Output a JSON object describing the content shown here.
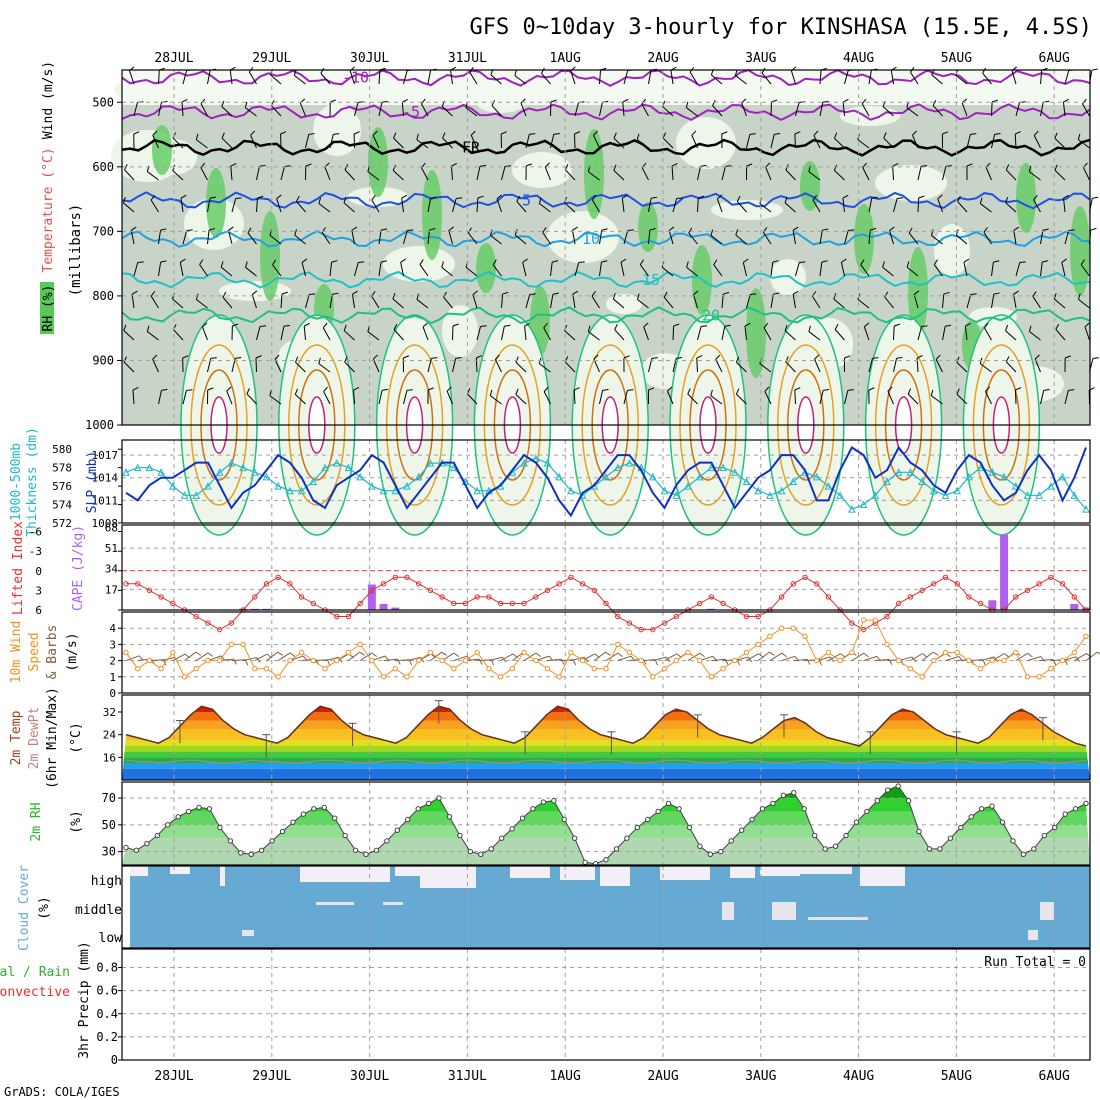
{
  "title": "GFS 0~10day 3-hourly for KINSHASA (15.5E, 4.5S)",
  "credit": "GrADS: COLA/IGES",
  "dates": [
    "28JUL",
    "29JUL",
    "30JUL",
    "31JUL",
    "1AUG",
    "2AUG",
    "3AUG",
    "4AUG",
    "5AUG",
    "6AUG"
  ],
  "colors": {
    "temp_label": "#e05050",
    "rh_label": "#30c030",
    "wind_label": "#000000",
    "cyan": "#20b8c8",
    "slp": "#1030c0",
    "lifted": "#e03030",
    "cape": "#b060f0",
    "wind_speed": "#f09020",
    "barb": "#806040",
    "dewpt": "#c08080",
    "rh2m": "#20c020",
    "cloud": "#66aad4",
    "frame": "#000000",
    "grid": "#a0a0a0"
  },
  "chart_data": [
    {
      "panel": "upper-air",
      "type": "heatmap",
      "ylabel": "(millibars)",
      "axis_labels": {
        "rh": "RH (%)",
        "temperature": "Temperature (°C)",
        "wind": "Wind (m/s)"
      },
      "y_ticks": [
        500,
        600,
        700,
        800,
        900,
        1000
      ],
      "ylim": [
        450,
        1000
      ],
      "isotherm_labels": [
        "-10",
        "-5",
        "FR",
        "5",
        "10",
        "15",
        "20"
      ],
      "rh_labels": [
        "10",
        "30",
        "50",
        "70"
      ],
      "isotherms": [
        {
          "name": "-10",
          "level": 462,
          "color": "#a020c0"
        },
        {
          "name": "-5",
          "level": 515,
          "color": "#a020c0"
        },
        {
          "name": "FR",
          "level": 570,
          "color": "#000000"
        },
        {
          "name": "5",
          "level": 652,
          "color": "#2050e0"
        },
        {
          "name": "10",
          "level": 712,
          "color": "#20a0e0"
        },
        {
          "name": "15",
          "level": 775,
          "color": "#20c0c8"
        },
        {
          "name": "20",
          "level": 830,
          "color": "#20c080"
        }
      ]
    },
    {
      "panel": "slp-thickness",
      "type": "line",
      "ylabel_left": "Thickness (dm)",
      "ylabel_left2": "1000-500mb",
      "ylabel_right": "SLP (mb)",
      "thickness_ticks": [
        "572",
        "574",
        "576",
        "578",
        "580"
      ],
      "slp_ticks": [
        "1008",
        "1011",
        "1014",
        "1017"
      ],
      "series": [
        {
          "name": "SLP (mb)",
          "values": [
            1012,
            1011,
            1013,
            1014,
            1014,
            1015,
            1016,
            1016,
            1013,
            1010,
            1012,
            1013,
            1015,
            1017,
            1016,
            1014,
            1011,
            1010,
            1013,
            1014,
            1015,
            1017,
            1016,
            1013,
            1010,
            1012,
            1014,
            1016,
            1016,
            1013,
            1010,
            1012,
            1013,
            1015,
            1017,
            1016,
            1014,
            1011,
            1009,
            1012,
            1013,
            1015,
            1017,
            1017,
            1015,
            1012,
            1010,
            1013,
            1015,
            1016,
            1016,
            1013,
            1010,
            1012,
            1014,
            1015,
            1017,
            1017,
            1015,
            1011,
            1011,
            1015,
            1018,
            1017,
            1014,
            1015,
            1018,
            1016,
            1015,
            1013,
            1012,
            1015,
            1017,
            1016,
            1013,
            1011,
            1012,
            1015,
            1017,
            1015,
            1011,
            1014,
            1018
          ]
        },
        {
          "name": "Thickness (dm)",
          "values": [
            577.5,
            578,
            578,
            577.5,
            576,
            575,
            575,
            576,
            577.5,
            578.5,
            578,
            577.5,
            577,
            576,
            575.5,
            575.5,
            576.5,
            578,
            578.5,
            578,
            577,
            576,
            575.5,
            575.5,
            576,
            577,
            578.5,
            578.5,
            578,
            576.5,
            575.5,
            575.5,
            576,
            577.5,
            578.5,
            579,
            578.5,
            577,
            575.5,
            575,
            576,
            577,
            578,
            578.5,
            578,
            577,
            575.5,
            575,
            576,
            577,
            578,
            578,
            577.5,
            576.5,
            575.5,
            575,
            575.5,
            576.5,
            577.5,
            577,
            576,
            575,
            573.5,
            574,
            575,
            576.5,
            577.5,
            577.5,
            576.5,
            575.5,
            575,
            575.5,
            577,
            578,
            577.5,
            577,
            576,
            575,
            575,
            576,
            577,
            575,
            573.5
          ]
        }
      ]
    },
    {
      "panel": "lifted-cape",
      "type": "bar",
      "ylabel_left": "Lifted Index",
      "ylabel_right": "CAPE (J/kg)",
      "li_ticks": [
        "-6",
        "-3",
        "0",
        "3",
        "6"
      ],
      "cape_ticks": [
        "17",
        "34",
        "51",
        "68"
      ],
      "series": [
        {
          "name": "Lifted Index",
          "values": [
            2,
            2,
            3,
            4,
            5,
            6,
            7,
            8,
            9,
            8,
            6,
            4,
            2,
            1,
            2,
            4,
            5,
            6,
            7,
            7,
            5,
            3,
            2,
            1,
            1,
            2,
            3,
            4,
            5,
            5,
            4,
            4,
            5,
            5,
            5,
            4,
            3,
            2,
            1,
            2,
            3,
            5,
            7,
            8,
            9,
            9,
            8,
            7,
            6,
            5,
            4,
            5,
            6,
            7,
            7,
            6,
            4,
            2,
            1,
            2,
            4,
            6,
            8,
            9,
            8,
            7,
            5,
            4,
            3,
            2,
            1,
            2,
            4,
            5,
            6,
            6,
            4,
            3,
            2,
            1,
            2,
            4,
            6
          ]
        },
        {
          "name": "CAPE (J/kg)",
          "values": [
            0,
            0,
            0,
            0,
            0,
            0,
            0,
            0,
            0,
            0,
            1,
            1,
            1,
            0,
            0,
            0,
            0,
            0,
            0,
            0,
            0,
            21,
            5,
            2,
            0,
            0,
            0,
            0,
            0,
            0,
            0,
            0,
            0,
            0,
            0,
            0,
            0,
            0,
            0,
            0,
            0,
            0,
            0,
            0,
            0,
            0,
            0,
            0,
            0,
            0,
            1,
            0,
            0,
            0,
            0,
            0,
            0,
            0,
            0,
            0,
            0,
            0,
            0,
            0,
            0,
            0,
            0,
            0,
            0,
            0,
            0,
            0,
            0,
            0,
            8,
            62,
            0,
            0,
            0,
            0,
            0,
            5,
            2
          ]
        }
      ]
    },
    {
      "panel": "wind10m",
      "type": "line",
      "ylabel": "10m Wind Speed & Barbs (m/s)",
      "y_ticks": [
        "0",
        "1",
        "2",
        "3",
        "4"
      ],
      "series": [
        {
          "name": "10m Wind Speed (m/s)",
          "values": [
            2.5,
            1.5,
            2,
            1.5,
            2.5,
            1,
            1.5,
            2,
            2,
            3,
            3,
            1.5,
            1.5,
            1,
            2,
            2.5,
            2,
            1.5,
            2,
            2.5,
            3,
            2,
            1,
            1.5,
            1,
            2,
            2.5,
            2,
            1.5,
            2,
            2.5,
            1.5,
            1,
            1.5,
            2.5,
            2,
            1.5,
            1,
            2.5,
            2,
            1.5,
            1.5,
            3,
            2.5,
            2,
            1,
            1.5,
            2,
            2.5,
            2,
            1,
            1.5,
            2,
            2.5,
            3,
            3.5,
            4,
            4,
            3.5,
            2,
            2.5,
            2,
            2.5,
            4.5,
            4.5,
            3,
            2,
            1.5,
            1,
            2,
            2.5,
            2.5,
            2,
            1.5,
            2,
            2,
            2.5,
            1,
            1,
            1.5,
            2,
            2.5,
            3.5
          ]
        }
      ]
    },
    {
      "panel": "temp2m",
      "type": "area",
      "ylabel": "2m Temp 2m DewPt (6hr Min/Max) (°C)",
      "y_ticks": [
        "16",
        "24",
        "32"
      ],
      "series": [
        {
          "name": "2m Temp (°C)",
          "values": [
            24,
            23,
            22,
            21,
            23,
            27,
            31,
            34,
            33,
            29,
            26,
            24,
            23,
            22,
            21,
            23,
            27,
            31,
            34,
            33,
            29,
            26,
            24,
            23,
            22,
            21,
            23,
            27,
            31,
            34,
            33,
            29,
            26,
            24,
            23,
            22,
            21,
            23,
            27,
            31,
            34,
            33,
            29,
            26,
            24,
            23,
            22,
            21,
            23,
            27,
            31,
            33,
            32,
            29,
            26,
            24,
            23,
            22,
            21,
            23,
            26,
            29,
            30,
            28,
            25,
            23,
            22,
            21,
            20,
            23,
            27,
            31,
            33,
            32,
            29,
            26,
            24,
            23,
            22,
            21,
            23,
            27,
            31,
            33,
            31,
            28,
            25,
            23,
            21,
            20
          ]
        },
        {
          "name": "2m DewPt (°C)",
          "values": [
            15,
            14.5,
            14.5,
            14,
            14.5,
            15,
            15,
            14.5,
            14,
            14,
            14.5,
            15,
            14.5,
            14.5,
            14,
            14,
            14.5,
            15,
            15,
            14.5,
            14,
            14,
            14.5,
            15,
            15,
            14.5,
            14,
            14,
            14.5,
            15,
            15,
            14.5,
            14,
            14,
            14.5,
            15,
            15,
            14.5,
            14,
            14,
            14.5,
            15,
            15,
            14.5,
            14,
            14,
            14.5,
            15,
            15,
            14.5,
            14,
            14,
            14.5,
            15,
            15,
            14.5,
            14,
            14,
            14.5,
            15,
            15,
            14.5,
            14,
            14,
            14.5,
            15,
            15,
            14.5,
            14,
            14,
            14.5,
            15,
            15,
            14.5,
            14,
            14,
            14.5,
            15,
            15,
            14.5,
            14,
            14,
            14.5,
            15
          ]
        }
      ]
    },
    {
      "panel": "rh2m",
      "type": "area",
      "ylabel": "2m RH (%)",
      "y_ticks": [
        "30",
        "50",
        "70"
      ],
      "series": [
        {
          "name": "2m RH (%)",
          "values": [
            33,
            31,
            36,
            42,
            50,
            56,
            60,
            63,
            62,
            48,
            38,
            29,
            28,
            31,
            38,
            45,
            52,
            58,
            62,
            63,
            55,
            42,
            31,
            28,
            31,
            38,
            46,
            54,
            62,
            66,
            70,
            56,
            42,
            30,
            28,
            32,
            40,
            47,
            55,
            62,
            67,
            68,
            54,
            40,
            22,
            21,
            24,
            32,
            40,
            48,
            54,
            60,
            66,
            62,
            48,
            34,
            28,
            30,
            38,
            46,
            54,
            62,
            66,
            72,
            74,
            62,
            42,
            32,
            34,
            42,
            52,
            60,
            68,
            76,
            79,
            68,
            45,
            32,
            32,
            40,
            48,
            56,
            62,
            64,
            52,
            38,
            28,
            32,
            42,
            48,
            58,
            62,
            66
          ]
        }
      ]
    },
    {
      "panel": "cloud",
      "type": "bar",
      "ylabel": "Cloud Cover (%)",
      "levels": [
        "high",
        "middle",
        "low"
      ]
    },
    {
      "panel": "precip",
      "type": "bar",
      "ylabel": "3hr Precip (mm)",
      "legend_total": "Total / Rain",
      "legend_conv": "Convective",
      "y_ticks": [
        "0",
        "0.2",
        "0.4",
        "0.6",
        "0.8"
      ],
      "run_total": "Run Total = 0",
      "series": [
        {
          "name": "3hr Precip (mm)",
          "values": []
        }
      ]
    }
  ]
}
